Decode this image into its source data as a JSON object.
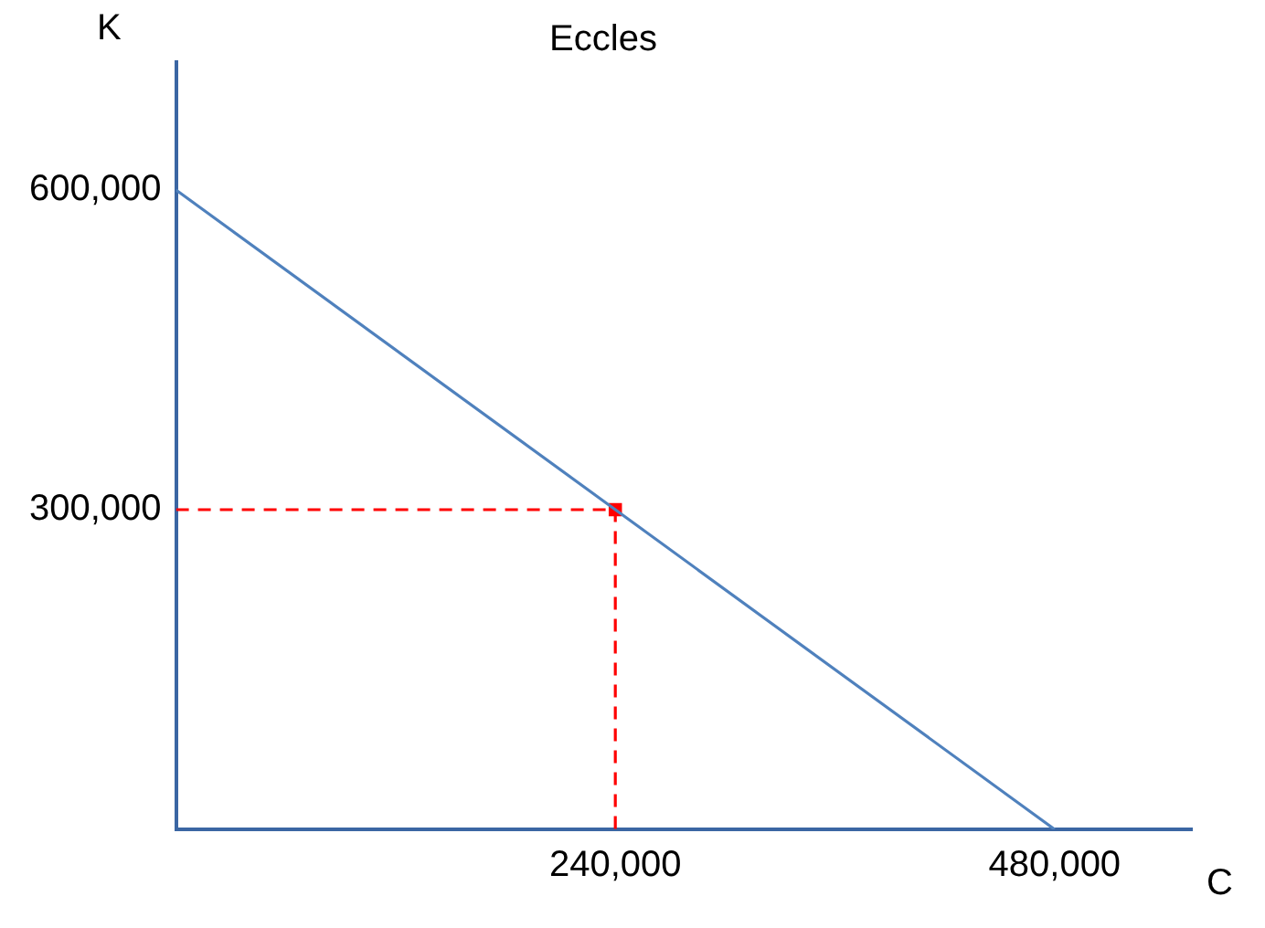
{
  "chart_data": {
    "type": "line",
    "title": "Eccles",
    "xlabel": "C",
    "ylabel": "K",
    "xlim": [
      0,
      555000
    ],
    "ylim": [
      0,
      720000
    ],
    "xticks": [
      {
        "value": 240000,
        "label": "240,000"
      },
      {
        "value": 480000,
        "label": "480,000"
      }
    ],
    "yticks": [
      {
        "value": 300000,
        "label": "300,000"
      },
      {
        "value": 600000,
        "label": "600,000"
      }
    ],
    "grid": false,
    "series": [
      {
        "color": "#4f81bd",
        "x": [
          0,
          480000
        ],
        "values": [
          600000,
          0
        ],
        "line_style": "solid",
        "marker": "none"
      },
      {
        "color": "#ff0000",
        "x": [
          0,
          240000,
          240000
        ],
        "values": [
          300000,
          300000,
          0
        ],
        "line_style": "dashed",
        "marker": "none"
      },
      {
        "type": "scatter",
        "color": "#ff0000",
        "x": [
          240000
        ],
        "values": [
          300000
        ],
        "marker": "square"
      }
    ]
  }
}
